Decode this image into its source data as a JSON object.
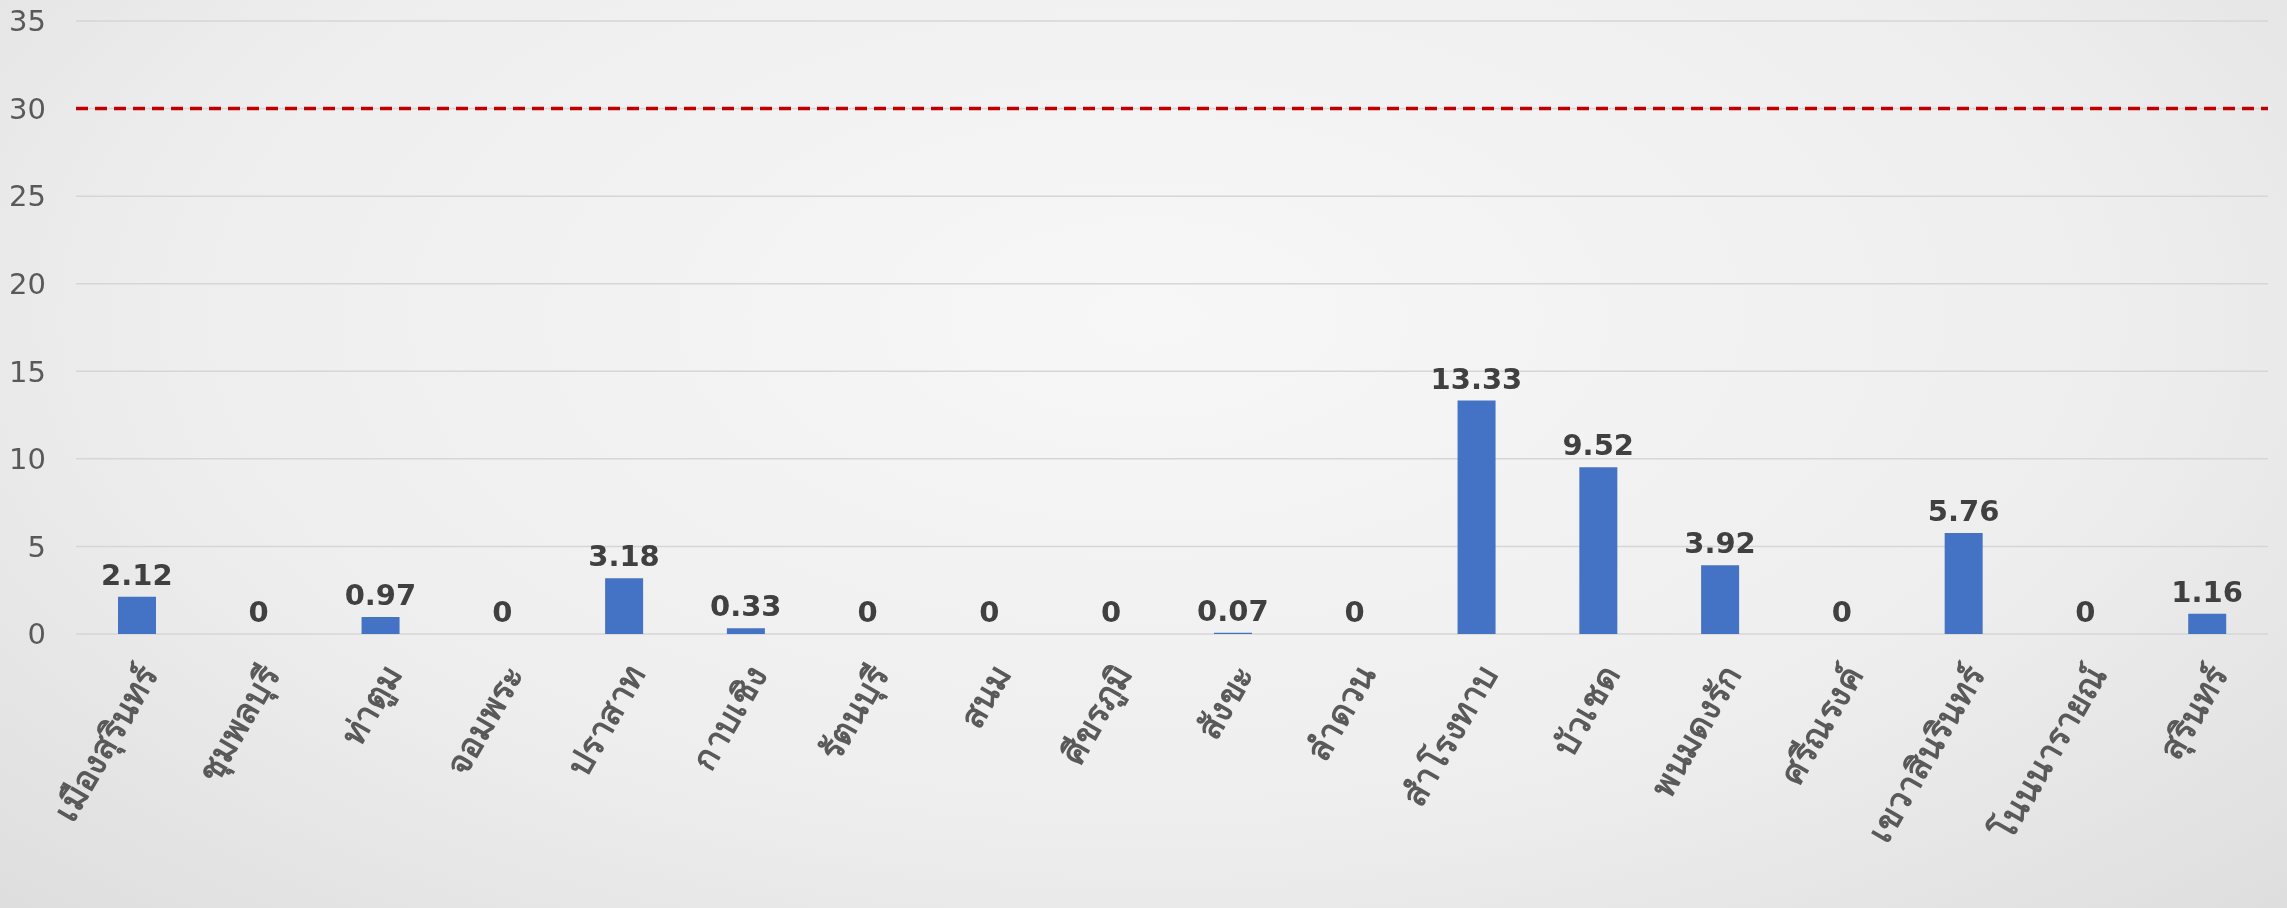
{
  "chart_data": {
    "type": "bar",
    "categories": [
      "เมืองสุรินทร์",
      "ชุมพลบุรี",
      "ท่าตูม",
      "จอมพระ",
      "ปราสาท",
      "กาบเชิง",
      "รัตนบุรี",
      "สนม",
      "ศีขรภูมิ",
      "สังขะ",
      "ลำดวน",
      "สำโรงทาบ",
      "บัวเชด",
      "พนมดงรัก",
      "ศรีณรงค์",
      "เขวาสินรินทร์",
      "โนนนารายณ์",
      "สุรินทร์"
    ],
    "values": [
      2.12,
      0,
      0.97,
      0,
      3.18,
      0.33,
      0,
      0,
      0,
      0.07,
      0,
      13.33,
      9.52,
      3.92,
      0,
      5.76,
      0,
      1.16
    ],
    "color": "#4472c4",
    "ylim": [
      0,
      35
    ],
    "yticks": [
      0,
      5,
      10,
      15,
      20,
      25,
      30,
      35
    ],
    "grid": "y",
    "data_labels": true,
    "ref_lines": [
      {
        "axis": "y",
        "value": 30,
        "color": "#c00000",
        "line_style": "dashed"
      }
    ]
  }
}
